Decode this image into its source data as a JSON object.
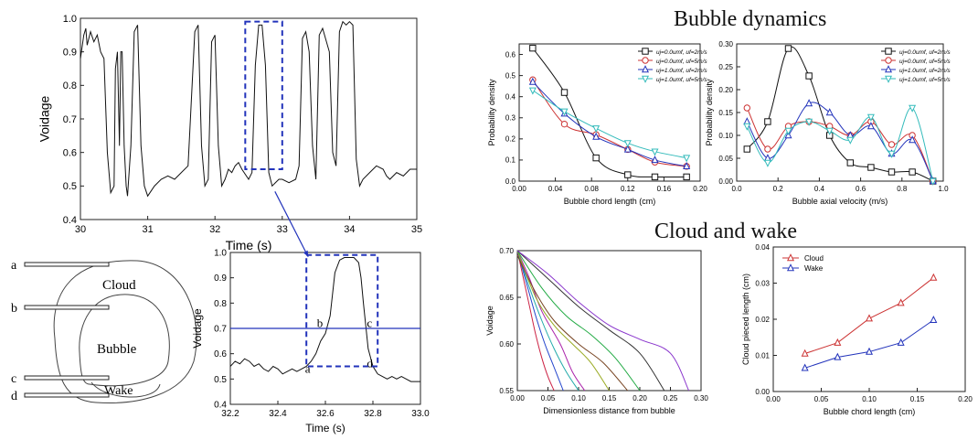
{
  "headings": {
    "bubble_dynamics": "Bubble dynamics",
    "cloud_and_wake": "Cloud and wake"
  },
  "schematic": {
    "labels": {
      "cloud": "Cloud",
      "bubble": "Bubble",
      "wake": "Wake"
    },
    "probes": [
      "a",
      "b",
      "c",
      "d"
    ]
  },
  "colors": {
    "trace": "#111111",
    "highlight": "#2233bb",
    "threshold": "#2233bb",
    "red": "#cc3333",
    "blue": "#2233bb",
    "teal": "#33bbbb"
  },
  "chart_data": [
    {
      "id": "voltage-signal",
      "type": "line",
      "xlabel": "Time (s)",
      "ylabel": "Voidage",
      "xlim": [
        30,
        35
      ],
      "ylim": [
        0.4,
        1.0
      ],
      "xticks": [
        "30",
        "31",
        "32",
        "33",
        "34",
        "35"
      ],
      "yticks": [
        "0.4",
        "0.5",
        "0.6",
        "0.7",
        "0.8",
        "0.9",
        "1.0"
      ],
      "x": [
        30.0,
        30.05,
        30.08,
        30.1,
        30.15,
        30.2,
        30.25,
        30.3,
        30.35,
        30.4,
        30.45,
        30.5,
        30.52,
        30.55,
        30.58,
        30.6,
        30.62,
        30.65,
        30.68,
        30.7,
        30.75,
        30.8,
        30.85,
        30.9,
        30.95,
        31.0,
        31.1,
        31.2,
        31.3,
        31.4,
        31.5,
        31.6,
        31.7,
        31.75,
        31.8,
        31.85,
        31.9,
        31.95,
        32.0,
        32.05,
        32.1,
        32.15,
        32.2,
        32.25,
        32.3,
        32.35,
        32.4,
        32.5,
        32.55,
        32.6,
        32.65,
        32.7,
        32.75,
        32.8,
        32.85,
        32.9,
        32.95,
        33.0,
        33.1,
        33.2,
        33.25,
        33.3,
        33.35,
        33.4,
        33.45,
        33.5,
        33.55,
        33.6,
        33.7,
        33.75,
        33.8,
        33.85,
        33.9,
        33.95,
        34.0,
        34.05,
        34.1,
        34.15,
        34.2,
        34.3,
        34.4,
        34.5,
        34.55,
        34.6,
        34.7,
        34.8,
        34.9,
        35.0
      ],
      "y": [
        0.88,
        0.95,
        0.97,
        0.92,
        0.96,
        0.93,
        0.95,
        0.9,
        0.88,
        0.6,
        0.48,
        0.5,
        0.85,
        0.9,
        0.62,
        0.9,
        0.9,
        0.62,
        0.5,
        0.47,
        0.62,
        0.96,
        0.98,
        0.62,
        0.5,
        0.47,
        0.5,
        0.52,
        0.53,
        0.52,
        0.54,
        0.56,
        0.96,
        0.98,
        0.62,
        0.5,
        0.52,
        0.93,
        0.95,
        0.62,
        0.5,
        0.52,
        0.55,
        0.54,
        0.56,
        0.57,
        0.55,
        0.52,
        0.54,
        0.86,
        0.98,
        0.98,
        0.86,
        0.54,
        0.5,
        0.51,
        0.52,
        0.52,
        0.51,
        0.52,
        0.56,
        0.94,
        0.96,
        0.9,
        0.62,
        0.52,
        0.95,
        0.97,
        0.9,
        0.6,
        0.56,
        0.96,
        0.99,
        0.98,
        0.99,
        0.98,
        0.58,
        0.5,
        0.52,
        0.54,
        0.56,
        0.55,
        0.53,
        0.52,
        0.54,
        0.53,
        0.55,
        0.55
      ]
    },
    {
      "id": "voltage-zoom",
      "type": "line",
      "xlabel": "Time (s)",
      "ylabel": "Voidage",
      "xlim": [
        32.2,
        33.0
      ],
      "ylim": [
        0.4,
        1.0
      ],
      "xticks": [
        "32.2",
        "32.4",
        "32.6",
        "32.8",
        "33.0"
      ],
      "yticks": [
        "0.4",
        "0.5",
        "0.6",
        "0.7",
        "0.8",
        "0.9",
        "1.0"
      ],
      "threshold": 0.7,
      "point_labels": [
        {
          "label": "a",
          "x": 32.53,
          "y": 0.54
        },
        {
          "label": "b",
          "x": 32.58,
          "y": 0.72
        },
        {
          "label": "c",
          "x": 32.79,
          "y": 0.72
        },
        {
          "label": "d",
          "x": 32.79,
          "y": 0.56
        }
      ],
      "x": [
        32.2,
        32.22,
        32.24,
        32.26,
        32.28,
        32.3,
        32.32,
        32.34,
        32.36,
        32.38,
        32.4,
        32.42,
        32.44,
        32.46,
        32.48,
        32.5,
        32.52,
        32.54,
        32.56,
        32.58,
        32.6,
        32.62,
        32.64,
        32.66,
        32.68,
        32.7,
        32.72,
        32.74,
        32.75,
        32.76,
        32.78,
        32.8,
        32.82,
        32.84,
        32.86,
        32.88,
        32.9,
        32.92,
        32.94,
        32.96,
        32.98,
        33.0
      ],
      "y": [
        0.55,
        0.57,
        0.56,
        0.58,
        0.57,
        0.55,
        0.56,
        0.54,
        0.53,
        0.55,
        0.54,
        0.52,
        0.53,
        0.54,
        0.53,
        0.54,
        0.55,
        0.57,
        0.6,
        0.65,
        0.68,
        0.75,
        0.92,
        0.97,
        0.98,
        0.98,
        0.98,
        0.96,
        0.9,
        0.8,
        0.62,
        0.55,
        0.52,
        0.51,
        0.5,
        0.51,
        0.5,
        0.51,
        0.5,
        0.49,
        0.49,
        0.49
      ]
    },
    {
      "id": "chord-length-pdf",
      "type": "line",
      "xlabel": "Bubble chord length (cm)",
      "ylabel": "Probability density",
      "xlim": [
        0.0,
        0.2
      ],
      "ylim": [
        0.0,
        0.65
      ],
      "xticks": [
        "0.00",
        "0.04",
        "0.08",
        "0.12",
        "0.16",
        "0.20"
      ],
      "yticks": [
        "0.0",
        "0.1",
        "0.2",
        "0.3",
        "0.4",
        "0.5",
        "0.6"
      ],
      "legend": "top-right",
      "series": [
        {
          "name": "uj=0.0umf, uf=2m/s",
          "marker": "square",
          "color": "#111111",
          "x": [
            0.015,
            0.05,
            0.085,
            0.12,
            0.15,
            0.185
          ],
          "y": [
            0.63,
            0.42,
            0.11,
            0.03,
            0.02,
            0.02
          ]
        },
        {
          "name": "uj=0.0umf, uf=5m/s",
          "marker": "circle",
          "color": "#cc3333",
          "x": [
            0.015,
            0.05,
            0.085,
            0.12,
            0.15,
            0.185
          ],
          "y": [
            0.48,
            0.27,
            0.22,
            0.15,
            0.09,
            0.07
          ]
        },
        {
          "name": "uj=1.0umf, uf=2m/s",
          "marker": "triangle",
          "color": "#2233bb",
          "x": [
            0.015,
            0.05,
            0.085,
            0.12,
            0.15,
            0.185
          ],
          "y": [
            0.47,
            0.32,
            0.21,
            0.15,
            0.1,
            0.07
          ]
        },
        {
          "name": "uj=1.0umf, uf=5m/s",
          "marker": "triangle-down",
          "color": "#33bbbb",
          "x": [
            0.015,
            0.05,
            0.085,
            0.12,
            0.15,
            0.185
          ],
          "y": [
            0.43,
            0.33,
            0.25,
            0.18,
            0.14,
            0.11
          ]
        }
      ]
    },
    {
      "id": "axial-velocity-pdf",
      "type": "line",
      "xlabel": "Bubble axial velocity (m/s)",
      "ylabel": "Probability density",
      "xlim": [
        0.0,
        1.0
      ],
      "ylim": [
        0.0,
        0.3
      ],
      "xticks": [
        "0.0",
        "0.2",
        "0.4",
        "0.6",
        "0.8",
        "1.0"
      ],
      "yticks": [
        "0.00",
        "0.05",
        "0.10",
        "0.15",
        "0.20",
        "0.25",
        "0.30"
      ],
      "legend": "top-right",
      "series": [
        {
          "name": "uj=0.0umf, uf=2m/s",
          "marker": "square",
          "color": "#111111",
          "x": [
            0.05,
            0.15,
            0.25,
            0.35,
            0.45,
            0.55,
            0.65,
            0.75,
            0.85,
            0.95
          ],
          "y": [
            0.07,
            0.13,
            0.29,
            0.23,
            0.1,
            0.04,
            0.03,
            0.02,
            0.02,
            0.0
          ]
        },
        {
          "name": "uj=0.0umf, uf=5m/s",
          "marker": "circle",
          "color": "#cc3333",
          "x": [
            0.05,
            0.15,
            0.25,
            0.35,
            0.45,
            0.55,
            0.65,
            0.75,
            0.85,
            0.95
          ],
          "y": [
            0.16,
            0.07,
            0.12,
            0.13,
            0.12,
            0.1,
            0.13,
            0.08,
            0.1,
            0.0
          ]
        },
        {
          "name": "uj=1.0umf, uf=2m/s",
          "marker": "triangle",
          "color": "#2233bb",
          "x": [
            0.05,
            0.15,
            0.25,
            0.35,
            0.45,
            0.55,
            0.65,
            0.75,
            0.85,
            0.95
          ],
          "y": [
            0.13,
            0.05,
            0.1,
            0.17,
            0.15,
            0.1,
            0.12,
            0.06,
            0.09,
            0.0
          ]
        },
        {
          "name": "uj=1.0umf, uf=5m/s",
          "marker": "triangle-down",
          "color": "#33bbbb",
          "x": [
            0.05,
            0.15,
            0.25,
            0.35,
            0.45,
            0.55,
            0.65,
            0.75,
            0.85,
            0.95
          ],
          "y": [
            0.12,
            0.04,
            0.11,
            0.13,
            0.11,
            0.09,
            0.14,
            0.06,
            0.16,
            0.0
          ]
        }
      ]
    },
    {
      "id": "voidage-profiles",
      "type": "line",
      "xlabel": "Dimensionless distance from bubble",
      "ylabel": "Voidage",
      "xlim": [
        0.0,
        0.3
      ],
      "ylim": [
        0.55,
        0.7
      ],
      "xticks": [
        "0.00",
        "0.05",
        "0.10",
        "0.15",
        "0.20",
        "0.25",
        "0.30"
      ],
      "yticks": [
        "0.55",
        "0.60",
        "0.65",
        "0.70"
      ],
      "series": [
        {
          "color": "#cc2244",
          "x": [
            0.0,
            0.01,
            0.02,
            0.03,
            0.04,
            0.05,
            0.06
          ],
          "y": [
            0.7,
            0.67,
            0.64,
            0.61,
            0.585,
            0.565,
            0.55
          ]
        },
        {
          "color": "#2244cc",
          "x": [
            0.0,
            0.015,
            0.03,
            0.045,
            0.06,
            0.075
          ],
          "y": [
            0.7,
            0.665,
            0.63,
            0.6,
            0.575,
            0.55
          ]
        },
        {
          "color": "#22aaaa",
          "x": [
            0.0,
            0.02,
            0.04,
            0.06,
            0.08,
            0.1
          ],
          "y": [
            0.7,
            0.66,
            0.625,
            0.595,
            0.57,
            0.55
          ]
        },
        {
          "color": "#aa22aa",
          "x": [
            0.0,
            0.02,
            0.04,
            0.07,
            0.09,
            0.11
          ],
          "y": [
            0.7,
            0.67,
            0.635,
            0.6,
            0.57,
            0.55
          ]
        },
        {
          "color": "#99aa22",
          "x": [
            0.0,
            0.03,
            0.06,
            0.09,
            0.12,
            0.15
          ],
          "y": [
            0.7,
            0.65,
            0.62,
            0.6,
            0.58,
            0.55
          ]
        },
        {
          "color": "#774422",
          "x": [
            0.0,
            0.03,
            0.06,
            0.1,
            0.14,
            0.18
          ],
          "y": [
            0.695,
            0.655,
            0.625,
            0.6,
            0.58,
            0.55
          ]
        },
        {
          "color": "#22aa44",
          "x": [
            0.0,
            0.04,
            0.08,
            0.12,
            0.16,
            0.2
          ],
          "y": [
            0.7,
            0.66,
            0.63,
            0.61,
            0.585,
            0.55
          ]
        },
        {
          "color": "#333333",
          "x": [
            0.0,
            0.05,
            0.1,
            0.15,
            0.2,
            0.24
          ],
          "y": [
            0.7,
            0.67,
            0.64,
            0.615,
            0.59,
            0.55
          ]
        },
        {
          "color": "#8833cc",
          "x": [
            0.0,
            0.05,
            0.1,
            0.15,
            0.2,
            0.25,
            0.28
          ],
          "y": [
            0.7,
            0.675,
            0.645,
            0.62,
            0.605,
            0.59,
            0.55
          ]
        }
      ]
    },
    {
      "id": "cloud-wake-length",
      "type": "line",
      "xlabel": "Bubble chord length (cm)",
      "ylabel": "Cloud pieced length (cm)",
      "xlim": [
        0.0,
        0.2
      ],
      "ylim": [
        0.0,
        0.04
      ],
      "xticks": [
        "0.00",
        "0.05",
        "0.10",
        "0.15",
        "0.20"
      ],
      "yticks": [
        "0.00",
        "0.01",
        "0.02",
        "0.03",
        "0.04"
      ],
      "legend": "top-left",
      "series": [
        {
          "name": "Cloud",
          "marker": "triangle",
          "color": "#cc3333",
          "x": [
            0.033,
            0.067,
            0.1,
            0.133,
            0.167
          ],
          "y": [
            0.0105,
            0.0135,
            0.0202,
            0.0245,
            0.0315
          ]
        },
        {
          "name": "Wake",
          "marker": "triangle",
          "color": "#2233bb",
          "x": [
            0.033,
            0.067,
            0.1,
            0.133,
            0.167
          ],
          "y": [
            0.0065,
            0.0095,
            0.011,
            0.0135,
            0.0198
          ]
        }
      ]
    }
  ]
}
